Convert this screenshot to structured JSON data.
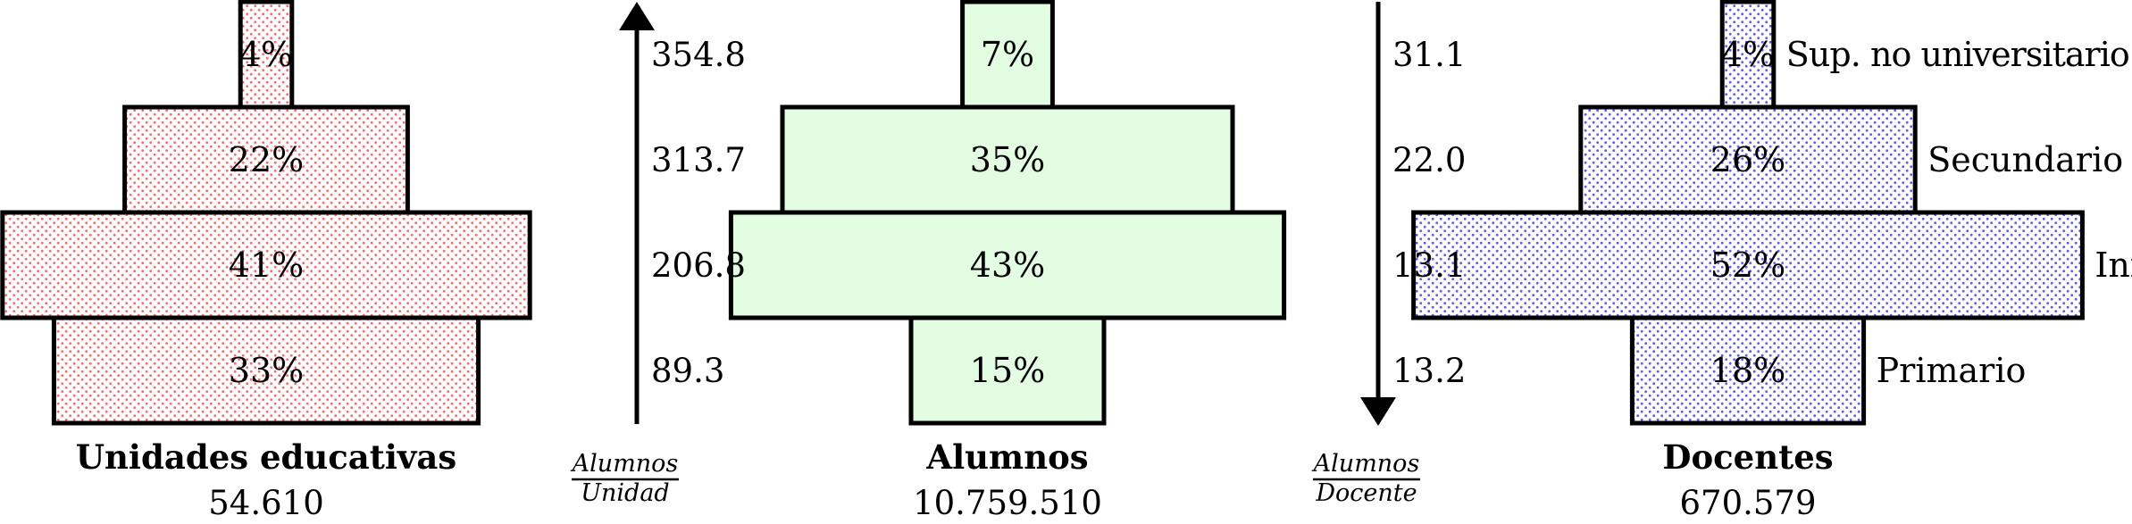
{
  "chart_data": {
    "type": "bar",
    "levels": [
      "Sup. no universitario",
      "Secundario",
      "Inicial",
      "Primario"
    ],
    "panels": [
      {
        "title": "Unidades educativas",
        "total": "54.610",
        "values": [
          4,
          22,
          41,
          33
        ],
        "labels": [
          "4%",
          "22%",
          "41%",
          "33%"
        ],
        "color": "#ff6b6b"
      },
      {
        "title": "Alumnos",
        "total": "10.759.510",
        "values": [
          7,
          35,
          43,
          15
        ],
        "labels": [
          "7%",
          "35%",
          "43%",
          "15%"
        ],
        "color": "#e3fde3"
      },
      {
        "title": "Docentes",
        "total": "670.579",
        "values": [
          4,
          26,
          52,
          18
        ],
        "labels": [
          "4%",
          "26%",
          "52%",
          "18%"
        ],
        "color": "#5c5cff"
      }
    ],
    "ratios": [
      {
        "label_num": "Alumnos",
        "label_den": "Unidad",
        "direction": "up",
        "values": [
          "354.8",
          "313.7",
          "206.8",
          "89.3"
        ]
      },
      {
        "label_num": "Alumnos",
        "label_den": "Docente",
        "direction": "down",
        "values": [
          "31.1",
          "22.0",
          "13.1",
          "13.2"
        ]
      }
    ]
  }
}
